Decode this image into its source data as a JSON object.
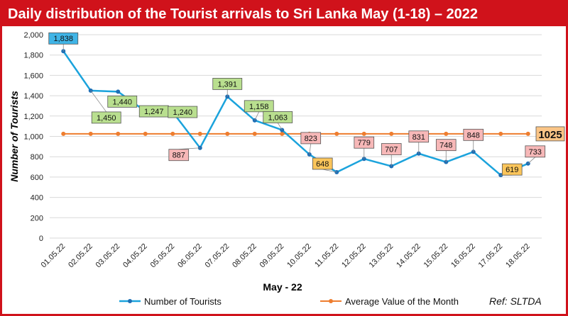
{
  "chart_data": {
    "type": "line",
    "title": "Daily distribution of the Tourist arrivals to Sri Lanka May (1-18) – 2022",
    "xlabel": "May - 22",
    "ylabel": "Number of Tourists",
    "ylim": [
      0,
      2000
    ],
    "yticks": [
      "0",
      "200",
      "400",
      "600",
      "800",
      "1,000",
      "1,200",
      "1,400",
      "1,600",
      "1,800",
      "2,000"
    ],
    "grid": true,
    "legend_position": "bottom",
    "categories": [
      "01.05.22",
      "02.05.22",
      "03.05.22",
      "04.05.22",
      "05.05.22",
      "06.05.22",
      "07.05.22",
      "08.05.22",
      "09.05.22",
      "10.05.22",
      "11.05.22",
      "12.05.22",
      "13.05.22",
      "14.05.22",
      "15.05.22",
      "16.05.22",
      "17.05.22",
      "18.05.22"
    ],
    "series": [
      {
        "name": "Number of Tourists",
        "color": "#1ba3dc",
        "values": [
          1838,
          1450,
          1440,
          1247,
          1240,
          887,
          1391,
          1158,
          1063,
          823,
          648,
          779,
          707,
          831,
          748,
          848,
          619,
          733
        ],
        "labels": [
          "1,838",
          "1,450",
          "1,440",
          "1,247",
          "1,240",
          "887",
          "1,391",
          "1,158",
          "1,063",
          "823",
          "648",
          "779",
          "707",
          "831",
          "748",
          "848",
          "619",
          "733"
        ]
      },
      {
        "name": "Average Value of the Month",
        "color": "#ee7d2f",
        "values": [
          1025,
          1025,
          1025,
          1025,
          1025,
          1025,
          1025,
          1025,
          1025,
          1025,
          1025,
          1025,
          1025,
          1025,
          1025,
          1025,
          1025,
          1025
        ],
        "end_label": "1025"
      }
    ],
    "label_colors": {
      "blue": "#3fb4e6",
      "green": "#b9df8f",
      "red": "#f7b8b8",
      "orange": "#fbc55a",
      "avg": "#fbc586"
    },
    "label_styles": [
      "blue",
      "green",
      "green",
      "green",
      "green",
      "red",
      "green",
      "green",
      "green",
      "red",
      "orange",
      "red",
      "red",
      "red",
      "red",
      "red",
      "orange",
      "red"
    ],
    "source": "Ref: SLTDA"
  }
}
